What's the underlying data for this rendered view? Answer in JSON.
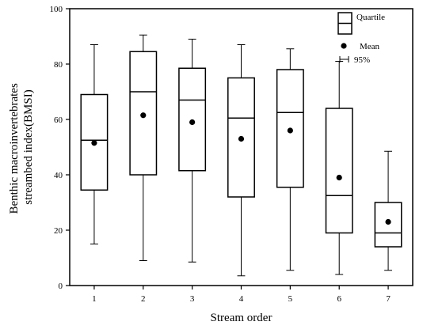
{
  "chart_data": {
    "type": "box",
    "title": "",
    "xlabel": "Stream  order",
    "ylabel_lines": [
      "Benthic  macroinvertebrates",
      "streambed index(BMSI)"
    ],
    "categories": [
      "1",
      "2",
      "3",
      "4",
      "5",
      "6",
      "7"
    ],
    "ylim": [
      0,
      100
    ],
    "yticks": [
      0,
      20,
      40,
      60,
      80,
      100
    ],
    "grid": false,
    "legend_position": "top-right",
    "legend": {
      "quartile": "Quartile",
      "mean": "Mean",
      "percentile": "95%"
    },
    "boxes": [
      {
        "category": "1",
        "whisker_low": 15,
        "q1": 34.5,
        "median": 52.5,
        "q3": 69,
        "whisker_high": 87,
        "mean": 51.5
      },
      {
        "category": "2",
        "whisker_low": 9,
        "q1": 40,
        "median": 70,
        "q3": 84.5,
        "whisker_high": 90.5,
        "mean": 61.5
      },
      {
        "category": "3",
        "whisker_low": 8.5,
        "q1": 41.5,
        "median": 67,
        "q3": 78.5,
        "whisker_high": 89,
        "mean": 59
      },
      {
        "category": "4",
        "whisker_low": 3.5,
        "q1": 32,
        "median": 60.5,
        "q3": 75,
        "whisker_high": 87,
        "mean": 53
      },
      {
        "category": "5",
        "whisker_low": 5.5,
        "q1": 35.5,
        "median": 62.5,
        "q3": 78,
        "whisker_high": 85.5,
        "mean": 56
      },
      {
        "category": "6",
        "whisker_low": 4,
        "q1": 19,
        "median": 32.5,
        "q3": 64,
        "whisker_high": 81,
        "mean": 39
      },
      {
        "category": "7",
        "whisker_low": 5.5,
        "q1": 14,
        "median": 19,
        "q3": 30,
        "whisker_high": 48.5,
        "mean": 23
      }
    ]
  }
}
